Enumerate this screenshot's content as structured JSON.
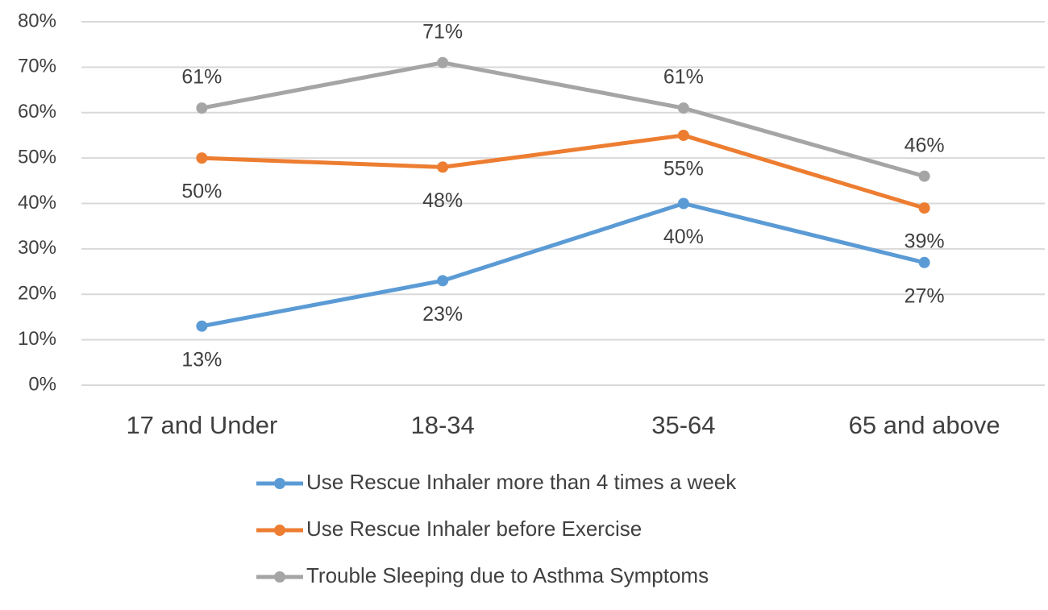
{
  "chart_data": {
    "type": "line",
    "categories": [
      "17 and Under",
      "18-34",
      "35-64",
      "65 and above"
    ],
    "series": [
      {
        "name": "Use Rescue Inhaler more than 4 times a week",
        "color": "#5b9bd5",
        "values": [
          13,
          23,
          40,
          27
        ],
        "value_labels": [
          "13%",
          "23%",
          "40%",
          "27%"
        ]
      },
      {
        "name": "Use Rescue Inhaler before Exercise",
        "color": "#ed7d31",
        "values": [
          50,
          48,
          55,
          39
        ],
        "value_labels": [
          "50%",
          "48%",
          "55%",
          "39%"
        ]
      },
      {
        "name": "Trouble Sleeping due to Asthma Symptoms",
        "color": "#a5a5a5",
        "values": [
          61,
          71,
          61,
          46
        ],
        "value_labels": [
          "61%",
          "71%",
          "61%",
          "46%"
        ]
      }
    ],
    "ylim": [
      0,
      80
    ],
    "yticks": [
      {
        "value": 0,
        "label": "0%"
      },
      {
        "value": 10,
        "label": "10%"
      },
      {
        "value": 20,
        "label": "20%"
      },
      {
        "value": 30,
        "label": "30%"
      },
      {
        "value": 40,
        "label": "40%"
      },
      {
        "value": 50,
        "label": "50%"
      },
      {
        "value": 60,
        "label": "60%"
      },
      {
        "value": 70,
        "label": "70%"
      },
      {
        "value": 80,
        "label": "80%"
      }
    ],
    "grid": true,
    "legend": "bottom"
  }
}
